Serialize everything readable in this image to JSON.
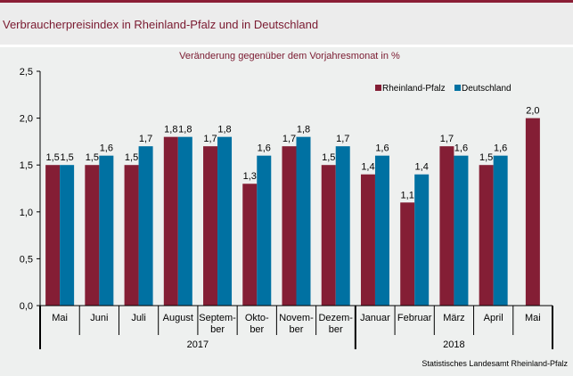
{
  "header": {
    "title": "Verbraucherpreisindex in Rheinland-Pfalz und in Deutschland"
  },
  "colors": {
    "rheinland_pfalz": "#841e35",
    "deutschland": "#0071a2",
    "header_bar": "#8b1e35"
  },
  "chart_data": {
    "type": "bar",
    "title": "Veränderung gegenüber dem Vorjahresmonat in %",
    "xlabel": "",
    "ylabel": "",
    "ylim": [
      0,
      2.5
    ],
    "yticks": [
      "0,0",
      "0,5",
      "1,0",
      "1,5",
      "2,0",
      "2,5"
    ],
    "ytick_values": [
      0,
      0.5,
      1.0,
      1.5,
      2.0,
      2.5
    ],
    "categories": [
      [
        "Mai"
      ],
      [
        "Juni"
      ],
      [
        "Juli"
      ],
      [
        "August"
      ],
      [
        "Septem-",
        "ber"
      ],
      [
        "Okto-",
        "ber"
      ],
      [
        "Novem-",
        "ber"
      ],
      [
        "Dezem-",
        "ber"
      ],
      [
        "Januar"
      ],
      [
        "Februar"
      ],
      [
        "März"
      ],
      [
        "April"
      ],
      [
        "Mai"
      ]
    ],
    "year_groups": [
      {
        "label": "2017",
        "start": 0,
        "end": 7
      },
      {
        "label": "2018",
        "start": 8,
        "end": 12
      }
    ],
    "series": [
      {
        "name": "Rheinland-Pfalz",
        "values": [
          1.5,
          1.5,
          1.5,
          1.8,
          1.7,
          1.3,
          1.7,
          1.5,
          1.4,
          1.1,
          1.7,
          1.5,
          2.0
        ]
      },
      {
        "name": "Deutschland",
        "values": [
          1.5,
          1.6,
          1.7,
          1.8,
          1.8,
          1.6,
          1.8,
          1.7,
          1.6,
          1.4,
          1.6,
          1.6,
          null
        ]
      }
    ],
    "legend_position": "top-right",
    "grid": false
  },
  "source": "Statistisches Landesamt Rheinland-Pfalz"
}
